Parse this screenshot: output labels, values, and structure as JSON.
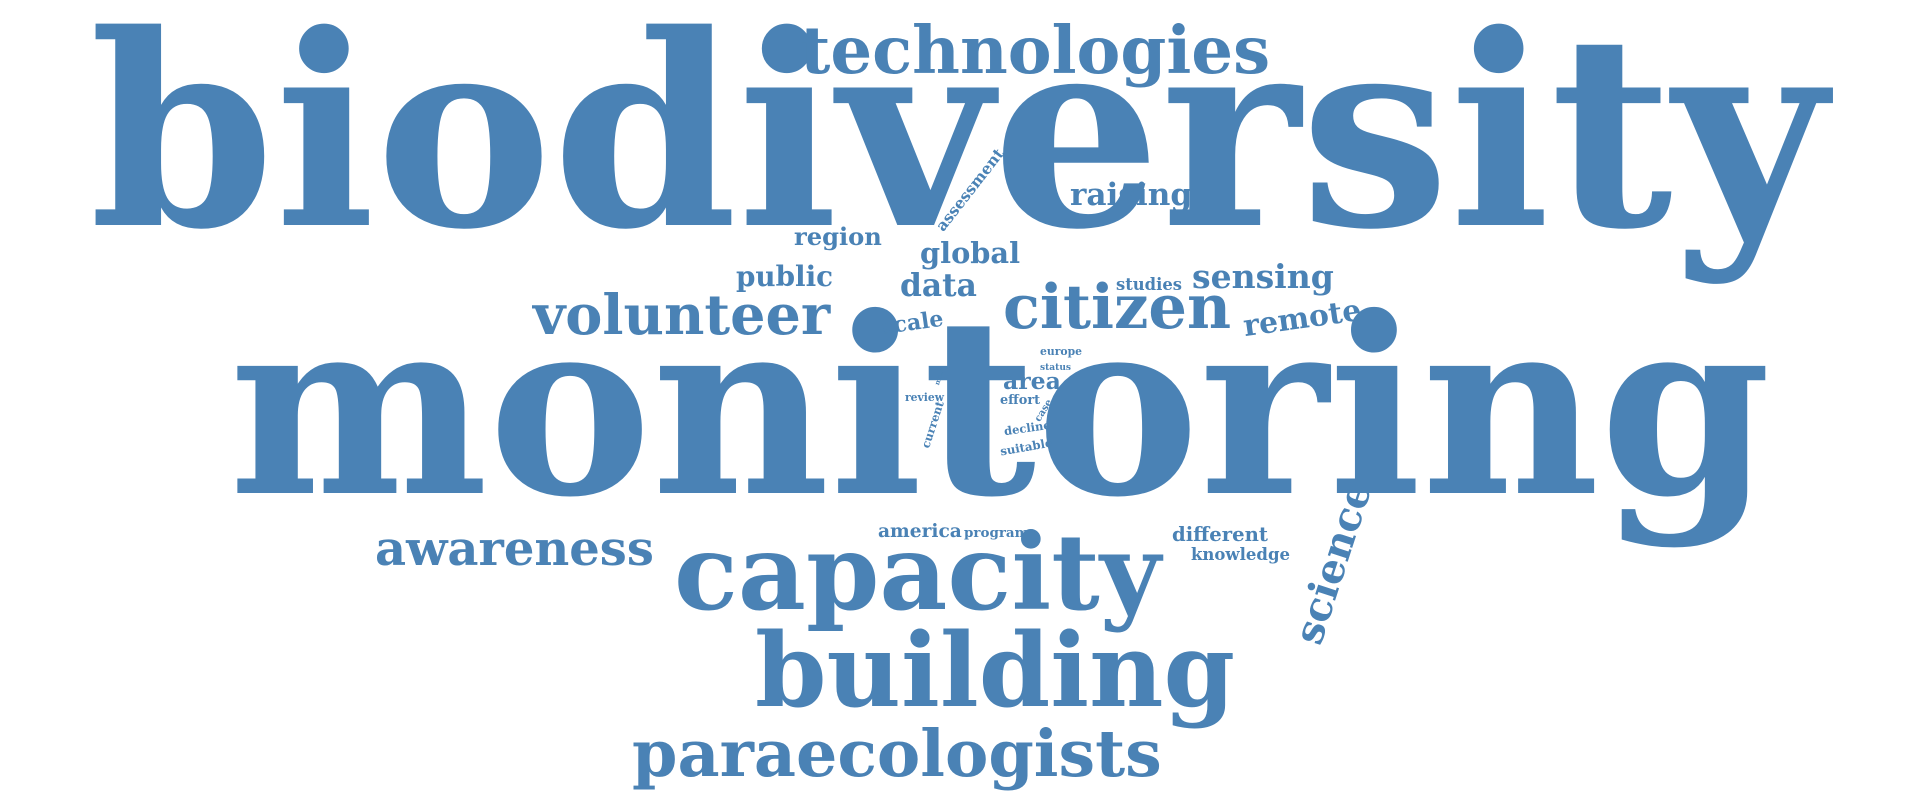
{
  "word_cloud": {
    "color": "#4a82b5",
    "words": [
      {
        "text": "biodiversity",
        "weight": 100
      },
      {
        "text": "monitoring",
        "weight": 98
      },
      {
        "text": "capacity",
        "weight": 44
      },
      {
        "text": "building",
        "weight": 40
      },
      {
        "text": "technologies",
        "weight": 30
      },
      {
        "text": "paraecologists",
        "weight": 30
      },
      {
        "text": "volunteer",
        "weight": 26
      },
      {
        "text": "citizen",
        "weight": 26
      },
      {
        "text": "science",
        "weight": 26
      },
      {
        "text": "awareness",
        "weight": 22
      },
      {
        "text": "sensing",
        "weight": 16
      },
      {
        "text": "remote",
        "weight": 16
      },
      {
        "text": "raising",
        "weight": 15
      },
      {
        "text": "global",
        "weight": 13
      },
      {
        "text": "data",
        "weight": 13
      },
      {
        "text": "public",
        "weight": 13
      },
      {
        "text": "region",
        "weight": 12
      },
      {
        "text": "scale",
        "weight": 11
      },
      {
        "text": "assessment",
        "weight": 10
      },
      {
        "text": "area",
        "weight": 10
      },
      {
        "text": "america",
        "weight": 9
      },
      {
        "text": "different",
        "weight": 9
      },
      {
        "text": "studies",
        "weight": 8
      },
      {
        "text": "knowledge",
        "weight": 8
      },
      {
        "text": "program",
        "weight": 7
      },
      {
        "text": "effort",
        "weight": 7
      },
      {
        "text": "decline",
        "weight": 7
      },
      {
        "text": "suitable",
        "weight": 7
      },
      {
        "text": "review",
        "weight": 6
      },
      {
        "text": "current",
        "weight": 6
      },
      {
        "text": "case",
        "weight": 6
      },
      {
        "text": "europe",
        "weight": 6
      },
      {
        "text": "status",
        "weight": 5
      },
      {
        "text": "most",
        "weight": 4
      }
    ]
  }
}
